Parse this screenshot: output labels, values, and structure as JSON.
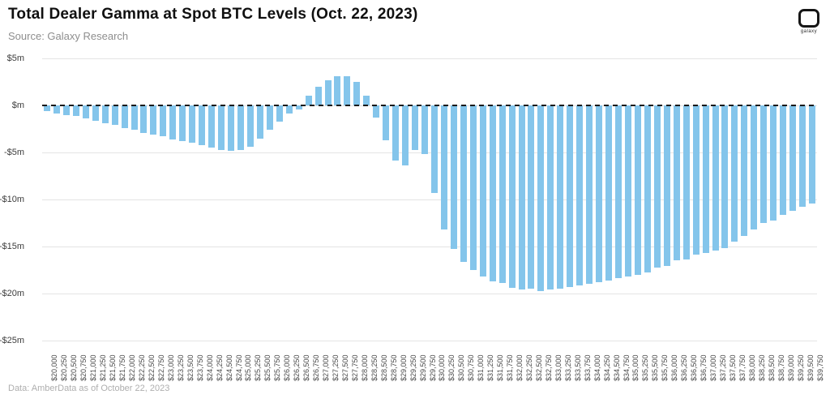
{
  "header": {
    "title": "Total Dealer Gamma at Spot BTC Levels (Oct. 22, 2023)",
    "source": "Source: Galaxy Research",
    "logo_label": "galaxy"
  },
  "footer": {
    "note": "Data: AmberData as of October 22, 2023"
  },
  "colors": {
    "bar": "#84c5eb",
    "grid": "#e4e4e4",
    "zero_line": "#1a1a1a",
    "title": "#101010",
    "subtitle": "#8e8e8e",
    "axis_label": "#4a4a4a",
    "footer": "#aeaeae"
  },
  "chart_data": {
    "type": "bar",
    "title": "Total Dealer Gamma at Spot BTC Levels (Oct. 22, 2023)",
    "xlabel": "",
    "ylabel": "",
    "unit": "millions of USD",
    "grid": true,
    "legend": "none",
    "ylim": [
      -25,
      5
    ],
    "y_ticks": [
      {
        "value": 5,
        "label": "$5m"
      },
      {
        "value": 0,
        "label": "$m"
      },
      {
        "value": -5,
        "label": "-$5m"
      },
      {
        "value": -10,
        "label": "-$10m"
      },
      {
        "value": -15,
        "label": "-$15m"
      },
      {
        "value": -20,
        "label": "-$20m"
      },
      {
        "value": -25,
        "label": "-$25m"
      }
    ],
    "categories": [
      "$20,000",
      "$20,250",
      "$20,500",
      "$20,750",
      "$21,000",
      "$21,250",
      "$21,500",
      "$21,750",
      "$22,000",
      "$22,250",
      "$22,500",
      "$22,750",
      "$23,000",
      "$23,250",
      "$23,500",
      "$23,750",
      "$24,000",
      "$24,250",
      "$24,500",
      "$24,750",
      "$25,000",
      "$25,250",
      "$25,500",
      "$25,750",
      "$26,000",
      "$26,250",
      "$26,500",
      "$26,750",
      "$27,000",
      "$27,250",
      "$27,500",
      "$27,750",
      "$28,000",
      "$28,250",
      "$28,500",
      "$28,750",
      "$29,000",
      "$29,250",
      "$29,500",
      "$29,750",
      "$30,000",
      "$30,250",
      "$30,500",
      "$30,750",
      "$31,000",
      "$31,250",
      "$31,500",
      "$31,750",
      "$32,000",
      "$32,250",
      "$32,500",
      "$32,750",
      "$33,000",
      "$33,250",
      "$33,500",
      "$33,750",
      "$34,000",
      "$34,250",
      "$34,500",
      "$34,750",
      "$35,000",
      "$35,250",
      "$35,500",
      "$35,750",
      "$36,000",
      "$36,250",
      "$36,500",
      "$36,750",
      "$37,000",
      "$37,250",
      "$37,500",
      "$37,750",
      "$38,000",
      "$38,250",
      "$38,500",
      "$38,750",
      "$39,000",
      "$39,250",
      "$39,500",
      "$39,750"
    ],
    "values": [
      -0.6,
      -0.9,
      -1.0,
      -1.1,
      -1.4,
      -1.6,
      -1.9,
      -2.1,
      -2.4,
      -2.6,
      -2.9,
      -3.1,
      -3.3,
      -3.6,
      -3.8,
      -4.0,
      -4.2,
      -4.5,
      -4.7,
      -4.8,
      -4.7,
      -4.4,
      -3.5,
      -2.6,
      -1.7,
      -0.9,
      -0.4,
      1.0,
      2.0,
      2.7,
      3.1,
      3.1,
      2.5,
      1.0,
      -1.3,
      -3.7,
      -5.9,
      -6.4,
      -4.7,
      -5.2,
      -9.3,
      -13.2,
      -15.3,
      -16.6,
      -17.5,
      -18.2,
      -18.7,
      -18.9,
      -19.4,
      -19.6,
      -19.5,
      -19.7,
      -19.6,
      -19.5,
      -19.3,
      -19.1,
      -19.0,
      -18.8,
      -18.6,
      -18.4,
      -18.2,
      -18.0,
      -17.8,
      -17.2,
      -17.1,
      -16.5,
      -16.4,
      -15.9,
      -15.7,
      -15.4,
      -15.2,
      -14.5,
      -13.9,
      -13.2,
      -12.5,
      -12.2,
      -11.6,
      -11.2,
      -10.8,
      -10.4
    ]
  }
}
